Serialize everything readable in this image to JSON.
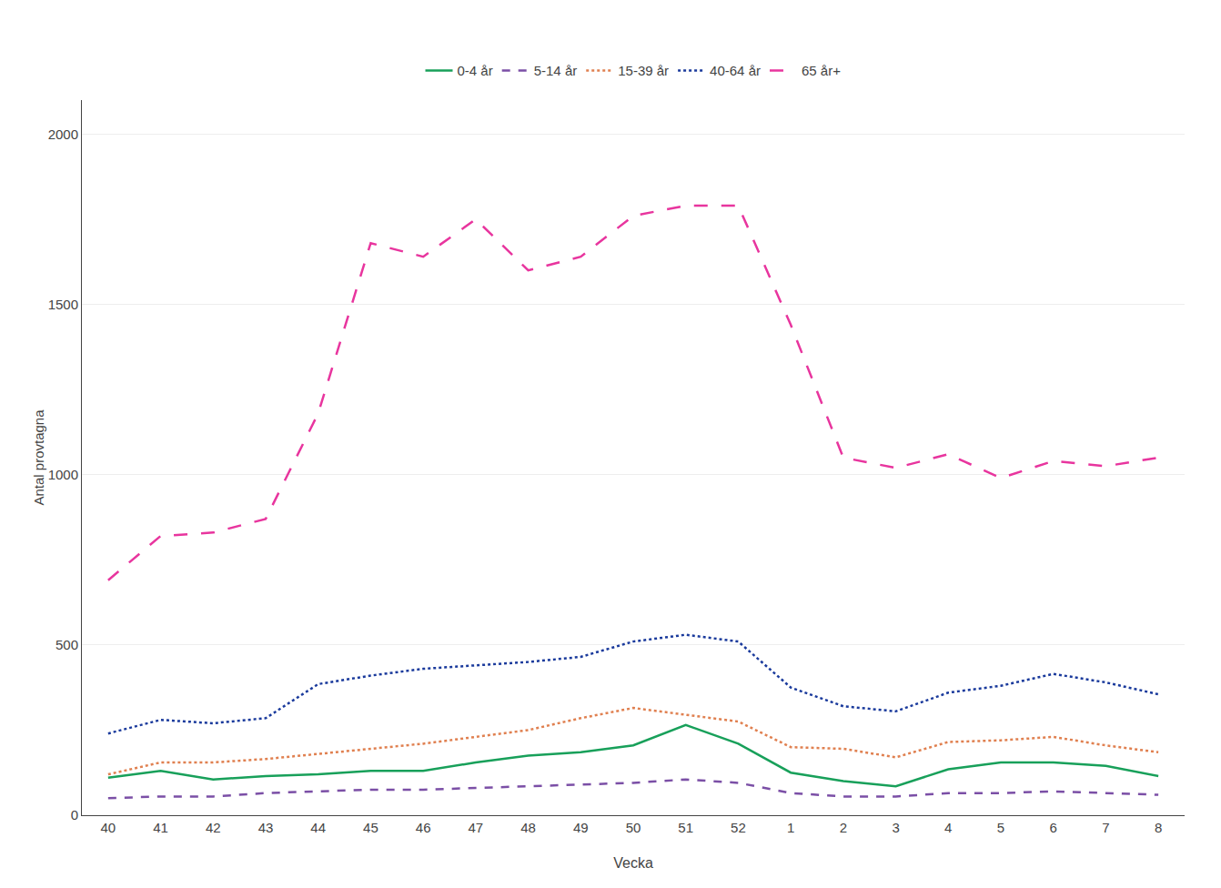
{
  "chart_data": {
    "type": "line",
    "xlabel": "Vecka",
    "ylabel": "Antal provtagna",
    "categories": [
      "40",
      "41",
      "42",
      "43",
      "44",
      "45",
      "46",
      "47",
      "48",
      "49",
      "50",
      "51",
      "52",
      "1",
      "2",
      "3",
      "4",
      "5",
      "6",
      "7",
      "8"
    ],
    "series": [
      {
        "name": "0-4 år",
        "color": "#18a05a",
        "line_style": "solid",
        "values": [
          110,
          130,
          105,
          115,
          120,
          130,
          130,
          155,
          175,
          185,
          205,
          265,
          210,
          125,
          100,
          85,
          135,
          155,
          155,
          145,
          115
        ]
      },
      {
        "name": "5-14 år",
        "color": "#7b4fa6",
        "line_style": "dashed",
        "values": [
          50,
          55,
          55,
          65,
          70,
          75,
          75,
          80,
          85,
          90,
          95,
          105,
          95,
          65,
          55,
          55,
          65,
          65,
          70,
          65,
          60
        ]
      },
      {
        "name": "15-39 år",
        "color": "#e08050",
        "line_style": "dotted",
        "values": [
          120,
          155,
          155,
          165,
          180,
          195,
          210,
          230,
          250,
          285,
          315,
          295,
          275,
          200,
          195,
          170,
          215,
          220,
          230,
          205,
          185
        ]
      },
      {
        "name": "40-64 år",
        "color": "#1a3a9c",
        "line_style": "dotted",
        "values": [
          240,
          280,
          270,
          285,
          385,
          410,
          430,
          440,
          450,
          465,
          510,
          530,
          510,
          375,
          320,
          305,
          360,
          380,
          415,
          390,
          355
        ]
      },
      {
        "name": "65 år+",
        "color": "#e8359e",
        "line_style": "longdash",
        "values": [
          690,
          820,
          830,
          870,
          1180,
          1680,
          1640,
          1750,
          1600,
          1640,
          1760,
          1790,
          1790,
          1440,
          1050,
          1020,
          1060,
          990,
          1040,
          1025,
          1050
        ]
      }
    ],
    "ylim": [
      0,
      2100
    ],
    "yticks": [
      0,
      500,
      1000,
      1500,
      2000
    ],
    "grid": true,
    "legend": "top"
  }
}
